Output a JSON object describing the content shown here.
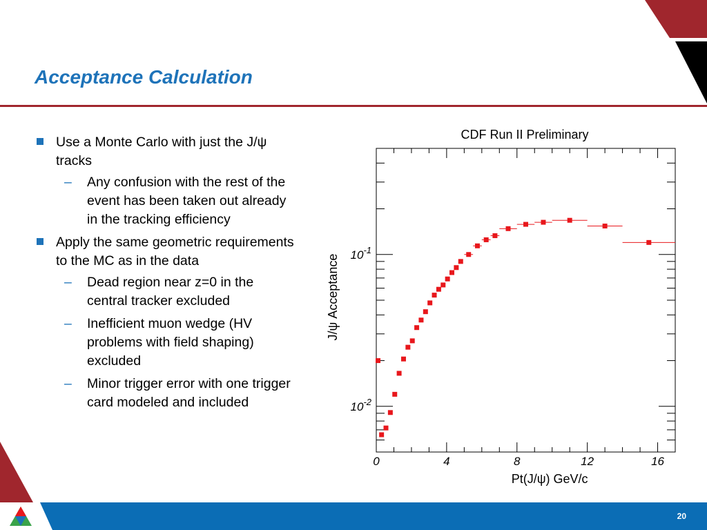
{
  "slide": {
    "title": "Acceptance Calculation",
    "page_number": "20",
    "colors": {
      "title": "#1e73b9",
      "rule": "#a0262d",
      "footer": "#0b6db5",
      "marker": "#e8171c"
    }
  },
  "bullets": [
    {
      "text": "Use a Monte Carlo with just the J/ψ tracks",
      "sub": [
        "Any confusion with the rest of the event has been taken out already in the tracking efficiency"
      ]
    },
    {
      "text": "Apply the same geometric requirements to the MC as in the data",
      "sub": [
        "Dead region near z=0 in the central tracker excluded",
        "Inefficient muon wedge (HV problems with field shaping) excluded",
        "Minor trigger error with one trigger card modeled and included"
      ]
    }
  ],
  "chart_data": {
    "type": "scatter",
    "title": "CDF Run II Preliminary",
    "xlabel": "Pt(J/ψ) GeV/c",
    "ylabel": "J/ψ Acceptance",
    "xlim": [
      0,
      17
    ],
    "ylim": [
      0.005,
      0.5
    ],
    "yscale": "log",
    "xticks": [
      "0",
      "4",
      "8",
      "12",
      "16"
    ],
    "yticks": [
      {
        "base": "10",
        "exp": "-1"
      },
      {
        "base": "10",
        "exp": "-2"
      }
    ],
    "grid": false,
    "points": [
      {
        "x": 0.1,
        "y": 0.02,
        "xerr": 0.1
      },
      {
        "x": 0.3,
        "y": 0.0065,
        "xerr": 0.1
      },
      {
        "x": 0.55,
        "y": 0.0072,
        "xerr": 0.1
      },
      {
        "x": 0.8,
        "y": 0.0091,
        "xerr": 0.1
      },
      {
        "x": 1.05,
        "y": 0.012,
        "xerr": 0.1
      },
      {
        "x": 1.3,
        "y": 0.0165,
        "xerr": 0.1
      },
      {
        "x": 1.55,
        "y": 0.0205,
        "xerr": 0.1
      },
      {
        "x": 1.8,
        "y": 0.0245,
        "xerr": 0.1
      },
      {
        "x": 2.05,
        "y": 0.027,
        "xerr": 0.1
      },
      {
        "x": 2.3,
        "y": 0.033,
        "xerr": 0.1
      },
      {
        "x": 2.55,
        "y": 0.037,
        "xerr": 0.1
      },
      {
        "x": 2.8,
        "y": 0.042,
        "xerr": 0.1
      },
      {
        "x": 3.05,
        "y": 0.048,
        "xerr": 0.1
      },
      {
        "x": 3.3,
        "y": 0.054,
        "xerr": 0.1
      },
      {
        "x": 3.55,
        "y": 0.059,
        "xerr": 0.1
      },
      {
        "x": 3.8,
        "y": 0.063,
        "xerr": 0.1
      },
      {
        "x": 4.05,
        "y": 0.069,
        "xerr": 0.1
      },
      {
        "x": 4.3,
        "y": 0.076,
        "xerr": 0.1
      },
      {
        "x": 4.55,
        "y": 0.082,
        "xerr": 0.1
      },
      {
        "x": 4.8,
        "y": 0.09,
        "xerr": 0.1
      },
      {
        "x": 5.25,
        "y": 0.1,
        "xerr": 0.25
      },
      {
        "x": 5.75,
        "y": 0.114,
        "xerr": 0.25
      },
      {
        "x": 6.25,
        "y": 0.125,
        "xerr": 0.25
      },
      {
        "x": 6.75,
        "y": 0.133,
        "xerr": 0.25
      },
      {
        "x": 7.5,
        "y": 0.148,
        "xerr": 0.5
      },
      {
        "x": 8.5,
        "y": 0.158,
        "xerr": 0.5
      },
      {
        "x": 9.5,
        "y": 0.163,
        "xerr": 0.5
      },
      {
        "x": 11.0,
        "y": 0.168,
        "xerr": 1.0
      },
      {
        "x": 13.0,
        "y": 0.154,
        "xerr": 1.0
      },
      {
        "x": 15.5,
        "y": 0.12,
        "xerr": 1.5
      }
    ]
  }
}
